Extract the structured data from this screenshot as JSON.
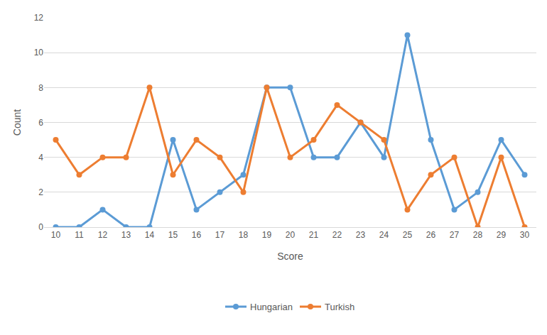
{
  "chart_data": {
    "type": "line",
    "x_label": "Score",
    "y_label": "Count",
    "categories": [
      "10",
      "11",
      "12",
      "13",
      "14",
      "15",
      "16",
      "17",
      "18",
      "19",
      "20",
      "21",
      "22",
      "23",
      "24",
      "25",
      "26",
      "27",
      "28",
      "29",
      "30"
    ],
    "series": [
      {
        "name": "Hungarian",
        "color": "#5B9BD5",
        "marker": "circle",
        "values": [
          0,
          0,
          1,
          0,
          0,
          5,
          1,
          2,
          3,
          8,
          8,
          4,
          4,
          6,
          4,
          11,
          5,
          1,
          2,
          5,
          3
        ]
      },
      {
        "name": "Turkish",
        "color": "#ED7D31",
        "marker": "circle",
        "values": [
          5,
          3,
          4,
          4,
          8,
          3,
          5,
          4,
          2,
          8,
          4,
          5,
          7,
          6,
          5,
          1,
          3,
          4,
          0,
          4,
          0
        ]
      }
    ],
    "ylim": [
      0,
      12
    ],
    "yticks": [
      0,
      2,
      4,
      6,
      8,
      10,
      12
    ],
    "grid": true,
    "legend": "bottom"
  }
}
